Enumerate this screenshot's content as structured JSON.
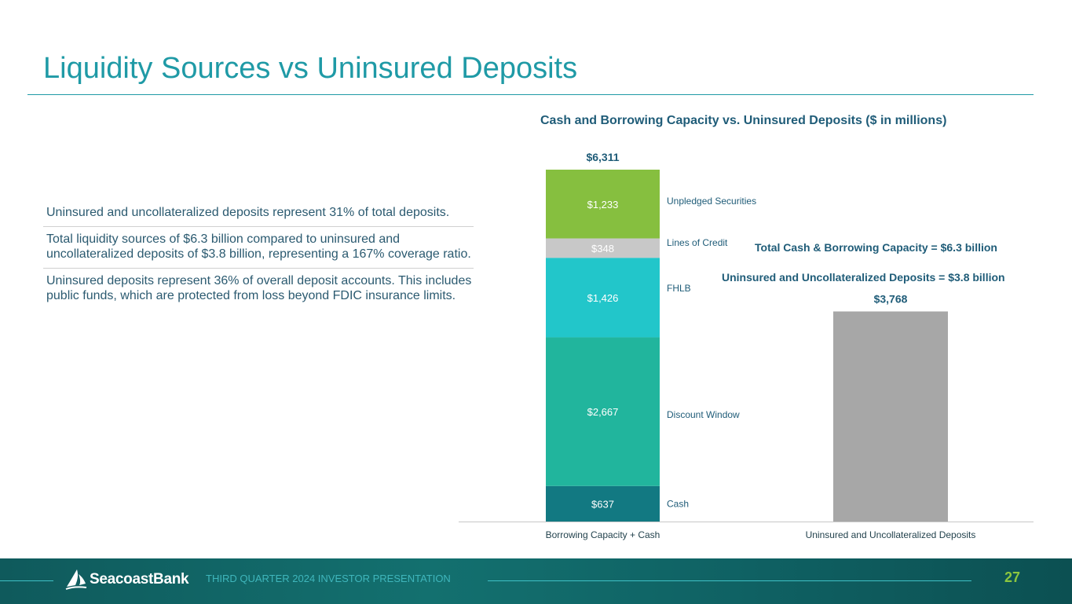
{
  "page": {
    "title": "Liquidity Sources vs Uninsured Deposits",
    "bullets": [
      "Uninsured and uncollateralized deposits represent 31% of total deposits.",
      "Total liquidity sources of $6.3 billion compared to uninsured and uncollateralized deposits of $3.8 billion, representing a 167% coverage ratio.",
      "Uninsured deposits represent 36% of overall deposit accounts. This includes public funds, which are protected from loss beyond FDIC insurance limits."
    ]
  },
  "chart_data": {
    "type": "bar",
    "stacked": true,
    "title": "Cash and Borrowing Capacity vs. Uninsured Deposits ($ in millions)",
    "categories": [
      "Borrowing Capacity + Cash",
      "Uninsured and Uncollateralized Deposits"
    ],
    "series": [
      {
        "name": "Cash",
        "values": [
          637,
          null
        ],
        "labels": [
          "$637",
          ""
        ],
        "color": "#127982"
      },
      {
        "name": "Discount Window",
        "values": [
          2667,
          null
        ],
        "labels": [
          "$2,667",
          ""
        ],
        "color": "#21b59d"
      },
      {
        "name": "FHLB",
        "values": [
          1426,
          null
        ],
        "labels": [
          "$1,426",
          ""
        ],
        "color": "#22c6ca"
      },
      {
        "name": "Lines of Credit",
        "values": [
          348,
          null
        ],
        "labels": [
          "$348",
          ""
        ],
        "color": "#c8c8c8"
      },
      {
        "name": "Unpledged Securities",
        "values": [
          1233,
          null
        ],
        "labels": [
          "$1,233",
          ""
        ],
        "color": "#86bf3f"
      },
      {
        "name": "",
        "values": [
          null,
          3768
        ],
        "labels": [
          "",
          ""
        ],
        "color": "#a7a7a7"
      }
    ],
    "totals": [
      6311,
      3768
    ],
    "total_labels": [
      "$6,311",
      "$3,768"
    ],
    "ylim": [
      0,
      6311
    ],
    "annotations": [
      "Total Cash & Borrowing Capacity = $6.3 billion",
      "Uninsured and Uncollateralized Deposits = $3.8 billion"
    ],
    "grid": false,
    "legend": "inline-right"
  },
  "footer": {
    "brand": "SeacoastBank",
    "presentation": "THIRD QUARTER 2024 INVESTOR PRESENTATION",
    "page_number": "27"
  },
  "colors": {
    "accent": "#1f9aa6",
    "text": "#1f5c78",
    "page_number": "#8cc63f"
  }
}
